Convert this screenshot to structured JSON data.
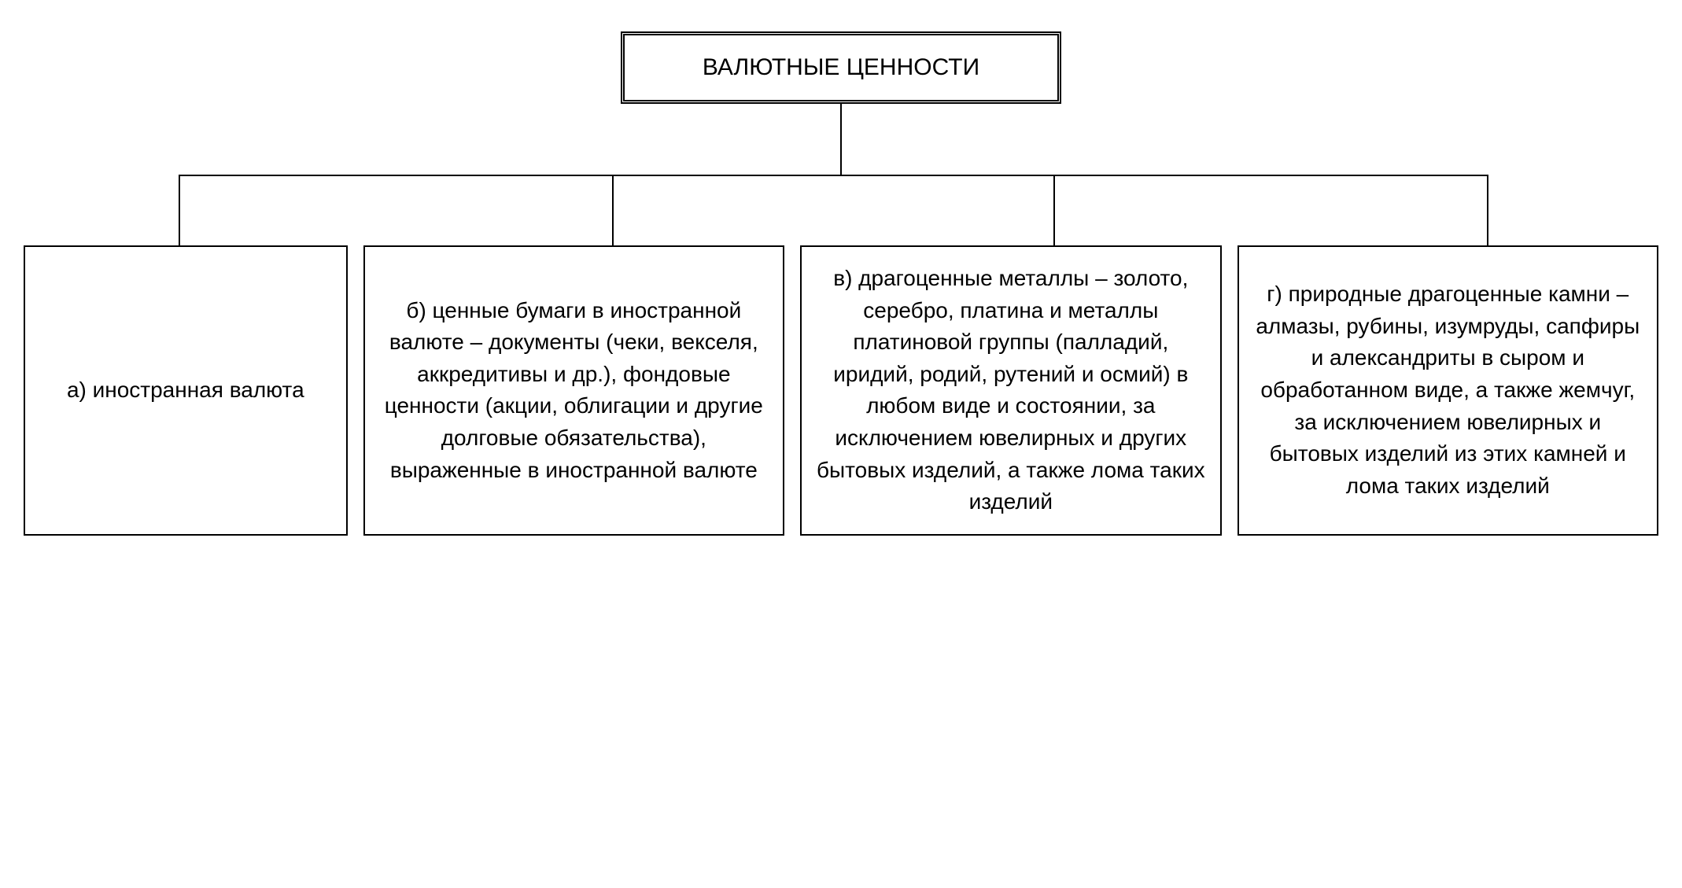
{
  "diagram": {
    "type": "tree",
    "background_color": "#ffffff",
    "border_color": "#000000",
    "line_color": "#000000",
    "font_family": "Arial",
    "root": {
      "label": "ВАЛЮТНЫЕ ЦЕННОСТИ",
      "border_style": "double",
      "border_width": 5,
      "fontsize": 30
    },
    "children": [
      {
        "id": "a",
        "label": "а) иностранная валюта",
        "fontsize": 28,
        "border_width": 2
      },
      {
        "id": "b",
        "label": "б) ценные бумаги в иностранной валюте – документы (чеки, векселя, аккредитивы и др.), фондовые ценности (акции, облигации и другие долговые обязательства), выраженные в иностранной валюте",
        "fontsize": 28,
        "border_width": 2
      },
      {
        "id": "c",
        "label": "в) драгоценные металлы – золото, серебро, платина и металлы платиновой группы (палладий, иридий, родий, рутений и осмий) в любом виде и состоянии, за исключением ювелирных и других бытовых изделий, а также лома таких изделий",
        "fontsize": 28,
        "border_width": 2
      },
      {
        "id": "d",
        "label": "г) природные драгоценные камни – алмазы, рубины, изумруды, сапфиры и александриты в сыром и обработанном виде, а также жемчуг, за исключением ювелирных и бытовых изделий из этих камней и лома таких изделий",
        "fontsize": 28,
        "border_width": 2
      }
    ],
    "connector": {
      "vertical_drop_from_root": 90,
      "vertical_drop_to_children": 90,
      "line_width": 2,
      "child_positions_pct": [
        9.5,
        36,
        63,
        89.5
      ],
      "h_line_left_pct": 9.5,
      "h_line_right_pct": 89.5
    }
  }
}
